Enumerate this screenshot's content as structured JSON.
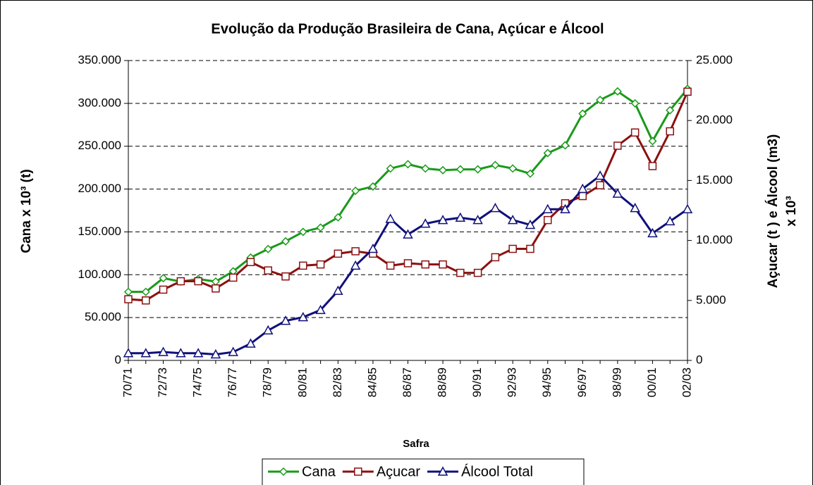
{
  "chart_data": {
    "type": "line",
    "title": "Evolução da Produção Brasileira de Cana, Açúcar e Álcool",
    "xlabel": "Safra",
    "ylabel": "Cana x 10³ (t)",
    "y2label": [
      "Açucar (t ) e Álcool  (m3)",
      "x 10³"
    ],
    "categories": [
      "70/71",
      null,
      "72/73",
      null,
      "74/75",
      null,
      "76/77",
      null,
      "78/79",
      null,
      "80/81",
      null,
      "82/83",
      null,
      "84/85",
      null,
      "86/87",
      null,
      "88/89",
      null,
      "90/91",
      null,
      "92/93",
      null,
      "94/95",
      null,
      "96/97",
      null,
      "98/99",
      null,
      "00/01",
      null,
      "02/03"
    ],
    "ylim": [
      0,
      350000
    ],
    "yticks": [
      0,
      {
        "value": 50000,
        "label": "50.000"
      },
      {
        "value": 100000,
        "label": "100.000"
      },
      {
        "value": 150000,
        "label": "150.000"
      },
      {
        "value": 200000,
        "label": "200.000"
      },
      {
        "value": 250000,
        "label": "250.000"
      },
      {
        "value": 300000,
        "label": "300.000"
      },
      {
        "value": 350000,
        "label": "350.000"
      }
    ],
    "y2lim": [
      0,
      25000
    ],
    "y2ticks": [
      0,
      {
        "value": 5000,
        "label": "5.000"
      },
      {
        "value": 10000,
        "label": "10.000"
      },
      {
        "value": 15000,
        "label": "15.000"
      },
      {
        "value": 20000,
        "label": "20.000"
      },
      {
        "value": 25000,
        "label": "25.000"
      }
    ],
    "grid": true,
    "legend": "bottom",
    "series": [
      {
        "name": "Cana",
        "color": "#1a9a1a",
        "marker": "diamond",
        "values": [
          80000,
          80000,
          96000,
          92000,
          95000,
          92000,
          104000,
          120000,
          130000,
          139000,
          150000,
          155000,
          167000,
          198000,
          203000,
          224000,
          229000,
          224000,
          222000,
          223000,
          223000,
          228000,
          224000,
          218000,
          242000,
          251000,
          288000,
          304000,
          314000,
          300000,
          256000,
          292000,
          317000
        ]
      },
      {
        "name": "Açucar",
        "color": "#8b1010",
        "marker": "square",
        "axis": "y2",
        "values": [
          5100,
          5000,
          5900,
          6600,
          6600,
          6000,
          6900,
          8200,
          7500,
          7000,
          7900,
          8000,
          8900,
          9100,
          8900,
          7900,
          8100,
          8000,
          8000,
          7300,
          7300,
          8600,
          9300,
          9300,
          11700,
          13100,
          13700,
          14600,
          17900,
          19000,
          16200,
          19100,
          22400
        ]
      },
      {
        "name": "Álcool Total",
        "color": "#10107a",
        "marker": "triangle",
        "axis": "y2",
        "values": [
          600,
          600,
          700,
          600,
          600,
          500,
          700,
          1400,
          2500,
          3300,
          3600,
          4200,
          5800,
          7900,
          9300,
          11800,
          10500,
          11400,
          11700,
          11900,
          11700,
          12700,
          11700,
          11300,
          12600,
          12600,
          14300,
          15400,
          13900,
          12700,
          10600,
          11600,
          12600
        ]
      }
    ]
  }
}
